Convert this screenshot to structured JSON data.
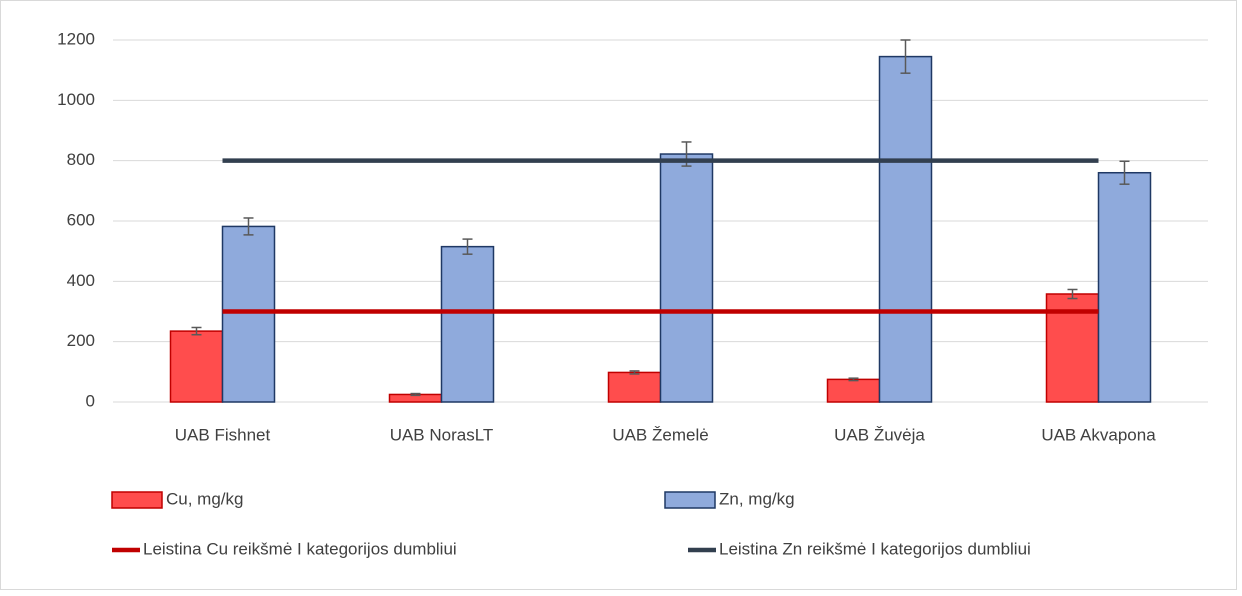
{
  "chart_data": {
    "type": "bar",
    "categories": [
      "UAB Fishnet",
      "UAB NorasLT",
      "UAB Žemelė",
      "UAB Žuvėja",
      "UAB Akvapona"
    ],
    "series": [
      {
        "name": "Cu, mg/kg",
        "type": "bar",
        "color": "#ff4d4d",
        "edge_color": "#c00000",
        "values": [
          235,
          25,
          98,
          75,
          358
        ],
        "errors": [
          12,
          3,
          5,
          4,
          15
        ]
      },
      {
        "name": "Zn, mg/kg",
        "type": "bar",
        "color": "#8faadc",
        "edge_color": "#1f3864",
        "values": [
          582,
          515,
          822,
          1145,
          760
        ],
        "errors": [
          28,
          25,
          40,
          55,
          38
        ]
      },
      {
        "name": "Leistina Cu reikšmė I kategorijos dumbliui",
        "type": "line",
        "color": "#c00000",
        "values": [
          300,
          300,
          300,
          300,
          300
        ]
      },
      {
        "name": "Leistina Zn reikšmė I kategorijos dumbliui",
        "type": "line",
        "color": "#323f4f",
        "values": [
          800,
          800,
          800,
          800,
          800
        ]
      }
    ],
    "ylim": [
      0,
      1200
    ],
    "yticks": [
      0,
      200,
      400,
      600,
      800,
      1000,
      1200
    ],
    "grid": true,
    "legend": "bottom"
  }
}
